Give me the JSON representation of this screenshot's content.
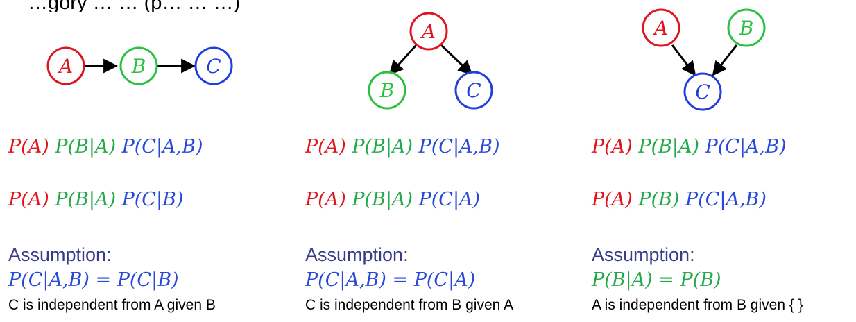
{
  "header_text": "…gory  …  …  (p… … …)",
  "colors": {
    "A": "#e0141e",
    "B": "#2bc040",
    "C": "#1f3fe0",
    "assumption": "#3a3a8c"
  },
  "columns": [
    {
      "graph": {
        "type": "chain",
        "nodes": [
          "A",
          "B",
          "C"
        ]
      },
      "full": [
        "P(A)",
        "P(B|A)",
        "P(C|A,B)"
      ],
      "factored": [
        "P(A)",
        "P(B|A)",
        "P(C|B)"
      ],
      "assumption_label": "Assumption:",
      "assumption_lhs": "P(C|A,B)",
      "assumption_rhs": "P(C|B)",
      "equals": "=",
      "note": "C is independent from A given B"
    },
    {
      "graph": {
        "type": "fork",
        "nodes": [
          "A",
          "B",
          "C"
        ]
      },
      "full": [
        "P(A)",
        "P(B|A)",
        "P(C|A,B)"
      ],
      "factored": [
        "P(A)",
        "P(B|A)",
        "P(C|A)"
      ],
      "assumption_label": "Assumption:",
      "assumption_lhs": "P(C|A,B)",
      "assumption_rhs": "P(C|A)",
      "equals": "=",
      "note": "C is independent from B given A"
    },
    {
      "graph": {
        "type": "collider",
        "nodes": [
          "A",
          "B",
          "C"
        ]
      },
      "full": [
        "P(A)",
        "P(B|A)",
        "P(C|A,B)"
      ],
      "factored": [
        "P(A)",
        "P(B)",
        "P(C|A,B)"
      ],
      "assumption_label": "Assumption:",
      "assumption_lhs": "P(B|A)",
      "assumption_rhs": "P(B)",
      "equals": "=",
      "note": "A is independent from B given { }"
    }
  ]
}
